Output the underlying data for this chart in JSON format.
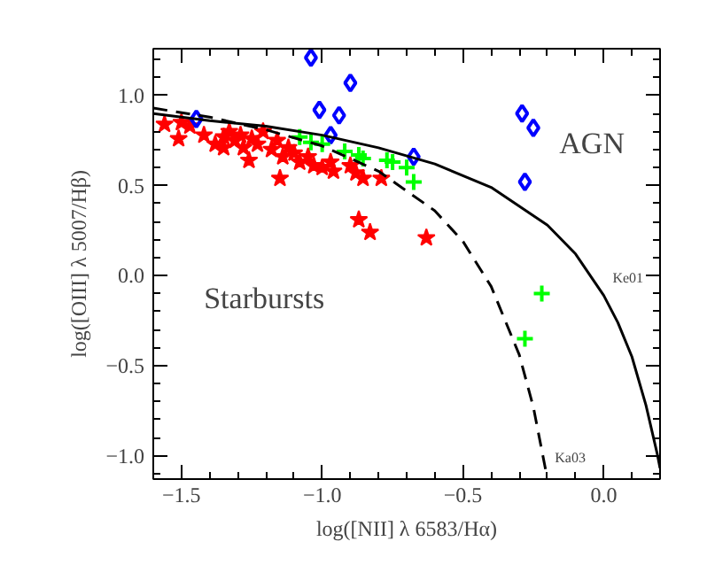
{
  "chart_data": {
    "type": "scatter",
    "xlabel": "log([NII] λ 6583/Hα)",
    "ylabel": "log([OIII] λ 5007/Hβ)",
    "xlim": [
      -1.6,
      0.2
    ],
    "ylim": [
      -1.13,
      1.26
    ],
    "xticks": [
      {
        "value": -1.5,
        "label": "−1.5"
      },
      {
        "value": -1.0,
        "label": "−1.0"
      },
      {
        "value": -0.5,
        "label": "−0.5"
      },
      {
        "value": 0.0,
        "label": "0.0"
      }
    ],
    "yticks": [
      {
        "value": -1.0,
        "label": "−1.0"
      },
      {
        "value": -0.5,
        "label": "−0.5"
      },
      {
        "value": 0.0,
        "label": "0.0"
      },
      {
        "value": 0.5,
        "label": "0.5"
      },
      {
        "value": 1.0,
        "label": "1.0"
      }
    ],
    "grid": false,
    "series": [
      {
        "marker": "star",
        "color": "#ff0000",
        "x": [
          -1.56,
          -1.51,
          -1.5,
          -1.47,
          -1.42,
          -1.38,
          -1.35,
          -1.35,
          -1.33,
          -1.31,
          -1.29,
          -1.28,
          -1.26,
          -1.25,
          -1.23,
          -1.21,
          -1.18,
          -1.16,
          -1.15,
          -1.14,
          -1.12,
          -1.1,
          -1.08,
          -1.05,
          -1.03,
          -1.0,
          -0.97,
          -0.96,
          -0.9,
          -0.88,
          -0.855,
          -0.87,
          -0.83,
          -0.79,
          -0.63
        ],
        "values": [
          0.84,
          0.76,
          0.85,
          0.83,
          0.78,
          0.73,
          0.77,
          0.71,
          0.8,
          0.75,
          0.78,
          0.71,
          0.64,
          0.76,
          0.73,
          0.8,
          0.7,
          0.75,
          0.54,
          0.66,
          0.71,
          0.68,
          0.63,
          0.66,
          0.61,
          0.6,
          0.63,
          0.58,
          0.61,
          0.57,
          0.54,
          0.31,
          0.24,
          0.54,
          0.21
        ]
      },
      {
        "marker": "diamond",
        "color": "#0000ff",
        "x": [
          -1.447,
          -1.04,
          -0.9,
          -1.01,
          -0.94,
          -0.97,
          -0.675,
          -0.29,
          -0.25,
          -0.28
        ],
        "values": [
          0.87,
          1.21,
          1.07,
          0.92,
          0.89,
          0.78,
          0.66,
          0.9,
          0.82,
          0.52
        ]
      },
      {
        "marker": "cross",
        "color": "#00ff00",
        "x": [
          -1.08,
          -1.04,
          -1.0,
          -0.92,
          -0.87,
          -0.855,
          -0.77,
          -0.75,
          -0.7,
          -0.675,
          -0.22,
          -0.28
        ],
        "values": [
          0.77,
          0.74,
          0.73,
          0.69,
          0.67,
          0.65,
          0.64,
          0.63,
          0.6,
          0.52,
          -0.1,
          -0.35
        ]
      },
      {
        "type": "line",
        "name": "Ke01",
        "line_style": "solid",
        "color": "#000000",
        "x": [
          -1.6,
          -1.4,
          -1.2,
          -1.0,
          -0.8,
          -0.6,
          -0.4,
          -0.2,
          -0.1,
          0.0,
          0.05,
          0.1,
          0.15,
          0.19,
          0.2
        ],
        "values": [
          0.9,
          0.86,
          0.83,
          0.78,
          0.71,
          0.62,
          0.49,
          0.28,
          0.12,
          -0.11,
          -0.26,
          -0.45,
          -0.72,
          -0.99,
          -1.07
        ]
      },
      {
        "type": "line",
        "name": "Ka03",
        "line_style": "dashed",
        "color": "#000000",
        "x": [
          -1.6,
          -1.4,
          -1.2,
          -1.0,
          -0.8,
          -0.6,
          -0.5,
          -0.4,
          -0.3,
          -0.25,
          -0.205
        ],
        "values": [
          0.93,
          0.88,
          0.81,
          0.72,
          0.58,
          0.36,
          0.19,
          -0.06,
          -0.44,
          -0.73,
          -1.09
        ]
      }
    ],
    "annotations": [
      "AGN",
      "Starbursts"
    ]
  }
}
